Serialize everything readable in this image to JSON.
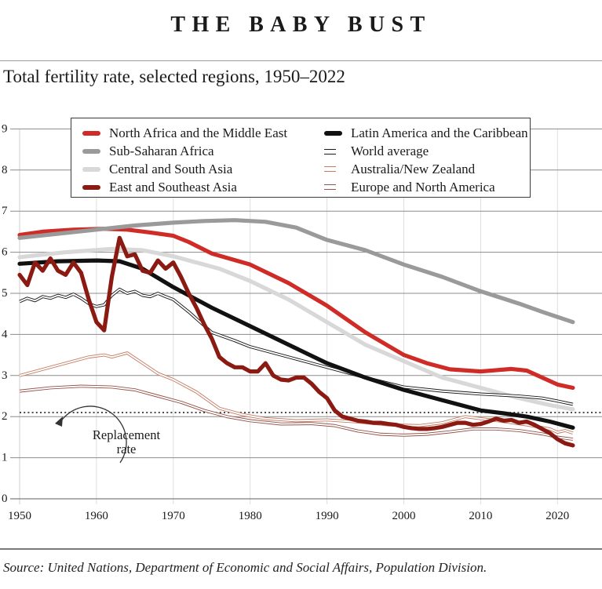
{
  "header": {
    "title": "THE BABY BUST"
  },
  "subtitle": "Total fertility rate, selected regions, 1950–2022",
  "annotation": {
    "line1": "Replacement",
    "line2": "rate",
    "points_to_value": 2.1
  },
  "source": "Source: United Nations, Department of Economic and Social Affairs, Population Division.",
  "legend": {
    "columns": [
      [
        "name",
        "ssa",
        "csa",
        "esea"
      ],
      [
        "latam",
        "world",
        "ausnz",
        "eune"
      ]
    ]
  },
  "chart_data": {
    "type": "line",
    "title": "Total fertility rate, selected regions, 1950–2022",
    "xlabel": "",
    "ylabel": "",
    "x_range": [
      1950,
      2022
    ],
    "y_range": [
      0,
      9
    ],
    "x_ticks": [
      1950,
      1960,
      1970,
      1980,
      1990,
      2000,
      2010,
      2020
    ],
    "y_ticks": [
      0,
      1,
      2,
      3,
      4,
      5,
      6,
      7,
      8,
      9
    ],
    "grid": "horizontal-major and vertical-decade",
    "legend_position": "top-inside-box",
    "replacement_rate": 2.1,
    "style": {
      "hgrid": "#8c8c8c",
      "axis": "#5f5f5f",
      "vgrid": "#dedede",
      "vgrid_first": "#cfcfcf",
      "tick_text": "#1a1a1a",
      "dotted_line": "#111111",
      "annotation_stroke": "#333333"
    },
    "z_order": [
      "csa",
      "name",
      "ssa",
      "world",
      "ausnz",
      "eune",
      "latam",
      "esea"
    ],
    "series": [
      {
        "key": "name",
        "label": "North Africa and the Middle East",
        "color": "#cf2b27",
        "style": "thick",
        "points": [
          [
            1950,
            6.42
          ],
          [
            1953,
            6.5
          ],
          [
            1957,
            6.55
          ],
          [
            1961,
            6.57
          ],
          [
            1964,
            6.55
          ],
          [
            1967,
            6.48
          ],
          [
            1970,
            6.4
          ],
          [
            1972,
            6.25
          ],
          [
            1975,
            5.97
          ],
          [
            1980,
            5.7
          ],
          [
            1985,
            5.25
          ],
          [
            1990,
            4.7
          ],
          [
            1995,
            4.05
          ],
          [
            2000,
            3.5
          ],
          [
            2003,
            3.3
          ],
          [
            2006,
            3.15
          ],
          [
            2010,
            3.1
          ],
          [
            2014,
            3.16
          ],
          [
            2016,
            3.12
          ],
          [
            2018,
            2.95
          ],
          [
            2020,
            2.78
          ],
          [
            2022,
            2.7
          ]
        ]
      },
      {
        "key": "ssa",
        "label": "Sub-Saharan Africa",
        "color": "#9a9a9a",
        "style": "thick",
        "points": [
          [
            1950,
            6.35
          ],
          [
            1955,
            6.45
          ],
          [
            1960,
            6.55
          ],
          [
            1965,
            6.65
          ],
          [
            1970,
            6.72
          ],
          [
            1974,
            6.76
          ],
          [
            1978,
            6.78
          ],
          [
            1982,
            6.74
          ],
          [
            1986,
            6.6
          ],
          [
            1990,
            6.3
          ],
          [
            1995,
            6.05
          ],
          [
            2000,
            5.7
          ],
          [
            2005,
            5.4
          ],
          [
            2010,
            5.05
          ],
          [
            2015,
            4.75
          ],
          [
            2018,
            4.55
          ],
          [
            2022,
            4.3
          ]
        ]
      },
      {
        "key": "csa",
        "label": "Central and South Asia",
        "color": "#d8d8d8",
        "style": "thick",
        "points": [
          [
            1950,
            5.88
          ],
          [
            1956,
            6.0
          ],
          [
            1962,
            6.08
          ],
          [
            1966,
            6.05
          ],
          [
            1970,
            5.9
          ],
          [
            1973,
            5.75
          ],
          [
            1976,
            5.6
          ],
          [
            1980,
            5.3
          ],
          [
            1985,
            4.85
          ],
          [
            1990,
            4.3
          ],
          [
            1995,
            3.75
          ],
          [
            2000,
            3.35
          ],
          [
            2005,
            2.95
          ],
          [
            2010,
            2.7
          ],
          [
            2015,
            2.45
          ],
          [
            2019,
            2.28
          ],
          [
            2022,
            2.18
          ]
        ]
      },
      {
        "key": "esea",
        "label": "East and Southeast Asia",
        "color": "#8b1a12",
        "style": "thick",
        "points": [
          [
            1950,
            5.45
          ],
          [
            1951,
            5.2
          ],
          [
            1952,
            5.75
          ],
          [
            1953,
            5.55
          ],
          [
            1954,
            5.85
          ],
          [
            1955,
            5.55
          ],
          [
            1956,
            5.45
          ],
          [
            1957,
            5.75
          ],
          [
            1958,
            5.5
          ],
          [
            1959,
            4.85
          ],
          [
            1960,
            4.3
          ],
          [
            1961,
            4.1
          ],
          [
            1962,
            5.4
          ],
          [
            1963,
            6.35
          ],
          [
            1964,
            5.9
          ],
          [
            1965,
            5.95
          ],
          [
            1966,
            5.55
          ],
          [
            1967,
            5.5
          ],
          [
            1968,
            5.8
          ],
          [
            1969,
            5.6
          ],
          [
            1970,
            5.75
          ],
          [
            1971,
            5.4
          ],
          [
            1972,
            5.0
          ],
          [
            1973,
            4.65
          ],
          [
            1974,
            4.25
          ],
          [
            1975,
            3.9
          ],
          [
            1976,
            3.45
          ],
          [
            1977,
            3.3
          ],
          [
            1978,
            3.2
          ],
          [
            1979,
            3.2
          ],
          [
            1980,
            3.1
          ],
          [
            1981,
            3.1
          ],
          [
            1982,
            3.3
          ],
          [
            1983,
            3.0
          ],
          [
            1984,
            2.9
          ],
          [
            1985,
            2.88
          ],
          [
            1986,
            2.95
          ],
          [
            1987,
            2.95
          ],
          [
            1988,
            2.8
          ],
          [
            1989,
            2.6
          ],
          [
            1990,
            2.45
          ],
          [
            1991,
            2.15
          ],
          [
            1992,
            2.0
          ],
          [
            1993,
            1.95
          ],
          [
            1994,
            1.9
          ],
          [
            1995,
            1.88
          ],
          [
            1996,
            1.85
          ],
          [
            1997,
            1.85
          ],
          [
            1998,
            1.82
          ],
          [
            1999,
            1.8
          ],
          [
            2000,
            1.75
          ],
          [
            2001,
            1.72
          ],
          [
            2002,
            1.7
          ],
          [
            2003,
            1.7
          ],
          [
            2004,
            1.72
          ],
          [
            2005,
            1.75
          ],
          [
            2006,
            1.8
          ],
          [
            2007,
            1.85
          ],
          [
            2008,
            1.85
          ],
          [
            2009,
            1.8
          ],
          [
            2010,
            1.82
          ],
          [
            2011,
            1.88
          ],
          [
            2012,
            1.95
          ],
          [
            2013,
            1.9
          ],
          [
            2014,
            1.92
          ],
          [
            2015,
            1.85
          ],
          [
            2016,
            1.88
          ],
          [
            2017,
            1.8
          ],
          [
            2018,
            1.7
          ],
          [
            2019,
            1.6
          ],
          [
            2020,
            1.45
          ],
          [
            2021,
            1.35
          ],
          [
            2022,
            1.3
          ]
        ]
      },
      {
        "key": "latam",
        "label": "Latin America and the Caribbean",
        "color": "#111111",
        "style": "thick",
        "points": [
          [
            1950,
            5.72
          ],
          [
            1955,
            5.78
          ],
          [
            1960,
            5.8
          ],
          [
            1963,
            5.78
          ],
          [
            1966,
            5.6
          ],
          [
            1970,
            5.15
          ],
          [
            1975,
            4.65
          ],
          [
            1980,
            4.2
          ],
          [
            1985,
            3.75
          ],
          [
            1990,
            3.3
          ],
          [
            1995,
            2.95
          ],
          [
            2000,
            2.65
          ],
          [
            2005,
            2.4
          ],
          [
            2010,
            2.15
          ],
          [
            2013,
            2.08
          ],
          [
            2016,
            2.0
          ],
          [
            2019,
            1.88
          ],
          [
            2022,
            1.73
          ]
        ]
      },
      {
        "key": "world",
        "label": "World average",
        "color": "#1a1a1a",
        "style": "double",
        "points": [
          [
            1950,
            4.8
          ],
          [
            1951,
            4.88
          ],
          [
            1952,
            4.82
          ],
          [
            1953,
            4.92
          ],
          [
            1954,
            4.88
          ],
          [
            1955,
            4.95
          ],
          [
            1956,
            4.9
          ],
          [
            1957,
            4.98
          ],
          [
            1958,
            4.88
          ],
          [
            1959,
            4.75
          ],
          [
            1960,
            4.68
          ],
          [
            1961,
            4.72
          ],
          [
            1962,
            4.95
          ],
          [
            1963,
            5.1
          ],
          [
            1964,
            5.0
          ],
          [
            1965,
            5.05
          ],
          [
            1966,
            4.95
          ],
          [
            1967,
            4.92
          ],
          [
            1968,
            5.0
          ],
          [
            1969,
            4.92
          ],
          [
            1970,
            4.85
          ],
          [
            1972,
            4.55
          ],
          [
            1975,
            4.05
          ],
          [
            1978,
            3.85
          ],
          [
            1980,
            3.7
          ],
          [
            1985,
            3.45
          ],
          [
            1990,
            3.2
          ],
          [
            1995,
            2.95
          ],
          [
            2000,
            2.72
          ],
          [
            2005,
            2.62
          ],
          [
            2010,
            2.55
          ],
          [
            2015,
            2.5
          ],
          [
            2018,
            2.45
          ],
          [
            2020,
            2.38
          ],
          [
            2022,
            2.3
          ]
        ]
      },
      {
        "key": "ausnz",
        "label": "Australia/New Zealand",
        "color": "#c57f68",
        "style": "double",
        "points": [
          [
            1950,
            3.0
          ],
          [
            1953,
            3.15
          ],
          [
            1956,
            3.3
          ],
          [
            1959,
            3.45
          ],
          [
            1961,
            3.5
          ],
          [
            1962,
            3.45
          ],
          [
            1964,
            3.55
          ],
          [
            1966,
            3.3
          ],
          [
            1968,
            3.05
          ],
          [
            1970,
            2.9
          ],
          [
            1973,
            2.6
          ],
          [
            1976,
            2.2
          ],
          [
            1979,
            2.05
          ],
          [
            1982,
            1.95
          ],
          [
            1986,
            1.9
          ],
          [
            1990,
            1.92
          ],
          [
            1994,
            1.87
          ],
          [
            1998,
            1.8
          ],
          [
            2002,
            1.78
          ],
          [
            2005,
            1.85
          ],
          [
            2008,
            2.0
          ],
          [
            2010,
            1.95
          ],
          [
            2013,
            1.88
          ],
          [
            2016,
            1.8
          ],
          [
            2019,
            1.7
          ],
          [
            2020,
            1.62
          ],
          [
            2021,
            1.66
          ],
          [
            2022,
            1.6
          ]
        ]
      },
      {
        "key": "eune",
        "label": "Europe and North America",
        "color": "#96544a",
        "style": "double",
        "points": [
          [
            1950,
            2.62
          ],
          [
            1954,
            2.7
          ],
          [
            1958,
            2.74
          ],
          [
            1962,
            2.72
          ],
          [
            1965,
            2.65
          ],
          [
            1968,
            2.5
          ],
          [
            1971,
            2.35
          ],
          [
            1974,
            2.15
          ],
          [
            1977,
            2.0
          ],
          [
            1980,
            1.9
          ],
          [
            1984,
            1.82
          ],
          [
            1988,
            1.83
          ],
          [
            1991,
            1.78
          ],
          [
            1994,
            1.65
          ],
          [
            1997,
            1.57
          ],
          [
            2000,
            1.55
          ],
          [
            2003,
            1.57
          ],
          [
            2006,
            1.63
          ],
          [
            2009,
            1.7
          ],
          [
            2012,
            1.7
          ],
          [
            2015,
            1.66
          ],
          [
            2018,
            1.58
          ],
          [
            2020,
            1.5
          ],
          [
            2022,
            1.45
          ]
        ]
      }
    ]
  }
}
